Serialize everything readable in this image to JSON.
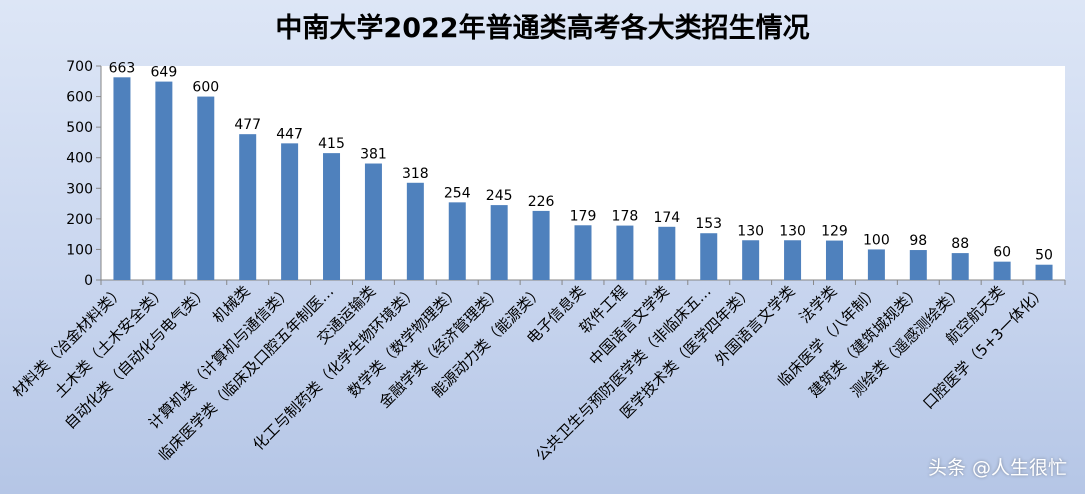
{
  "chart_data": {
    "type": "bar",
    "title": "中南大学2022年普通类高考各大类招生情况",
    "categories": [
      "材料类（冶金材料类）",
      "土木类（土木安全类）",
      "自动化类（自动化与电气类）",
      "机械类",
      "计算机类（计算机与通信类）",
      "临床医学类（临床及口腔五年制医…",
      "交通运输类",
      "化工与制药类（化学生物环境类）",
      "数学类（数学物理类）",
      "金融学类（经济管理类）",
      "能源动力类（能源类）",
      "电子信息类",
      "软件工程",
      "中国语言文学类",
      "公共卫生与预防医学类（非临床五…",
      "医学技术类（医学四年类）",
      "外国语言文学类",
      "法学类",
      "临床医学（八年制）",
      "建筑类（建筑城规类）",
      "测绘类（遥感测绘类）",
      "航空航天类",
      "口腔医学（5+3一体化）"
    ],
    "values": [
      663,
      649,
      600,
      477,
      447,
      415,
      381,
      318,
      254,
      245,
      226,
      179,
      178,
      174,
      153,
      130,
      130,
      129,
      100,
      98,
      88,
      60,
      50
    ],
    "ylim": [
      0,
      700
    ],
    "yticks": [
      0,
      100,
      200,
      300,
      400,
      500,
      600,
      700
    ],
    "grid": false,
    "bar_color": "#4f81bd"
  },
  "watermark": "头条 @人生很忙"
}
